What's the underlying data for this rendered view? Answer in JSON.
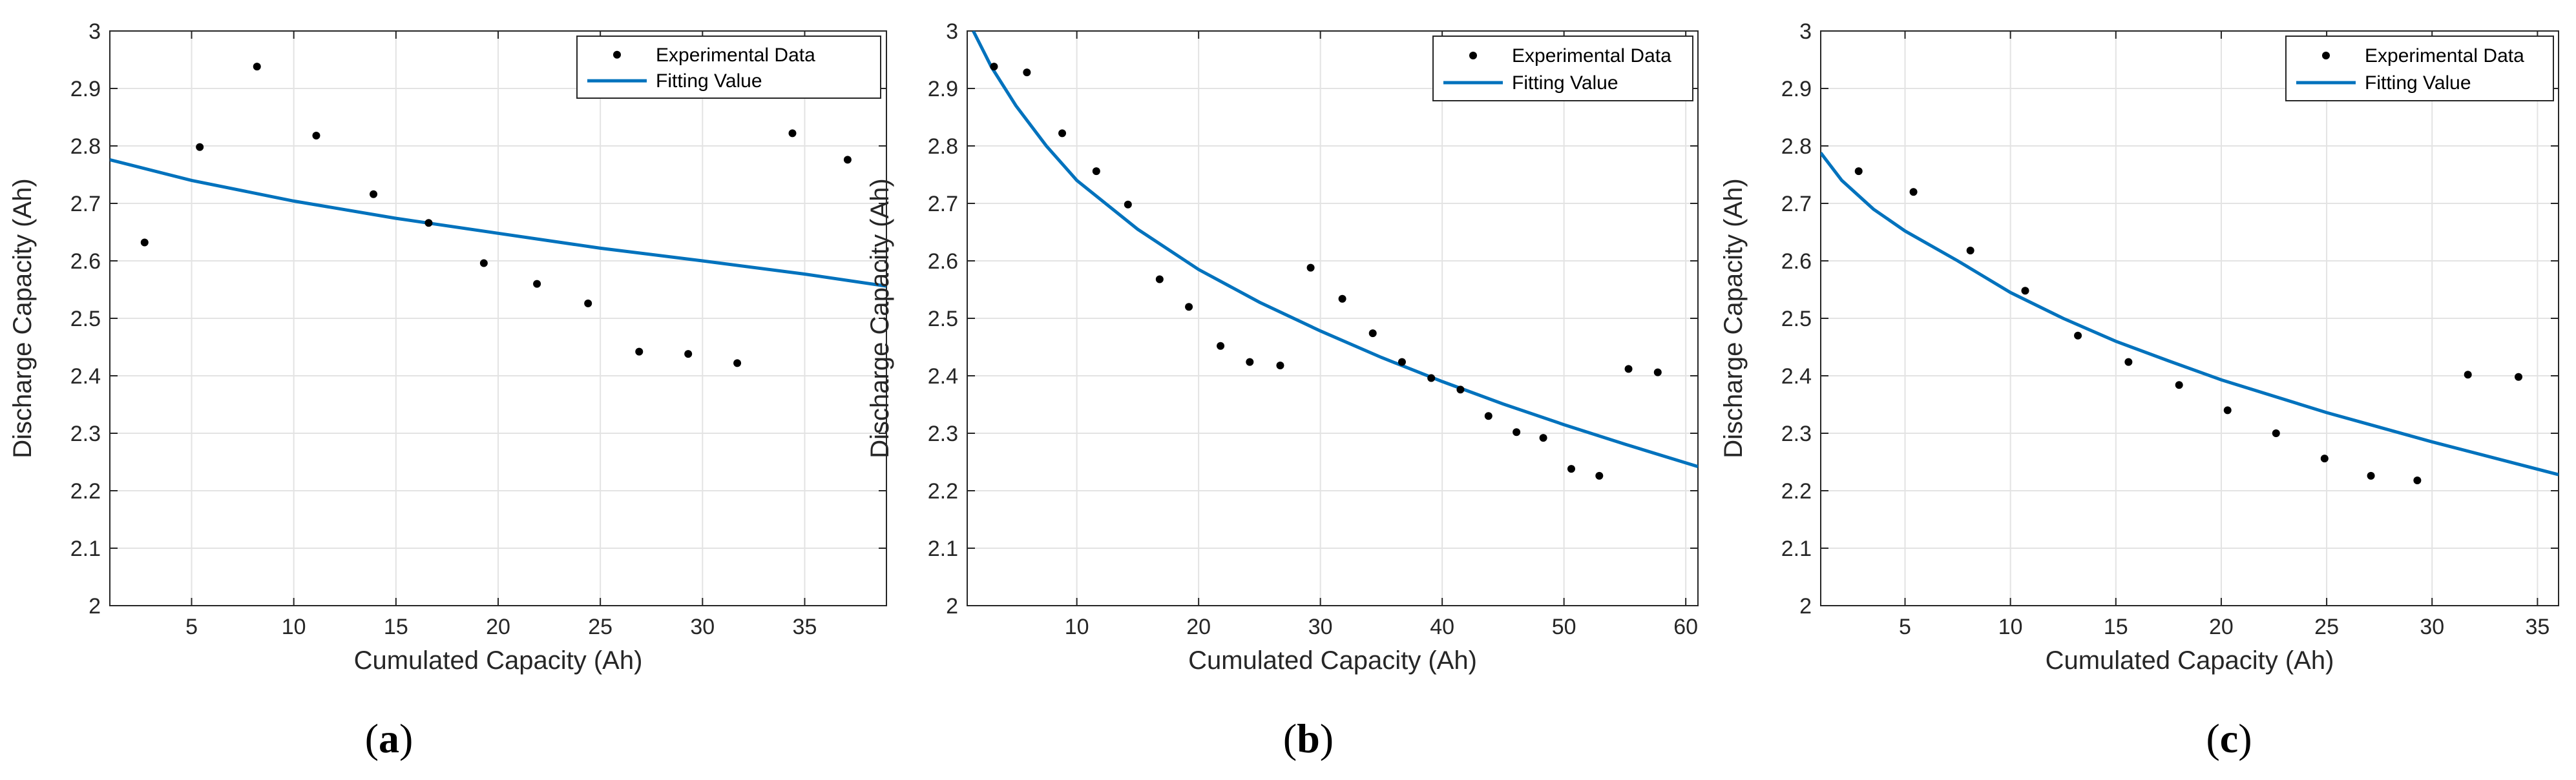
{
  "chart_data": [
    {
      "type": "scatter",
      "panel_label": "a",
      "xlabel": "Cumulated Capacity (Ah)",
      "ylabel": "Discharge Capacity (Ah)",
      "xlim": [
        1,
        39
      ],
      "ylim": [
        2,
        3
      ],
      "xticks": [
        5,
        10,
        15,
        20,
        25,
        30,
        35
      ],
      "yticks": [
        2,
        2.1,
        2.2,
        2.3,
        2.4,
        2.5,
        2.6,
        2.7,
        2.8,
        2.9,
        3
      ],
      "grid": true,
      "legend_position": "top-right",
      "series": [
        {
          "name": "Experimental Data",
          "kind": "points",
          "x": [
            2.7,
            5.4,
            8.2,
            11.1,
            13.9,
            16.6,
            19.3,
            21.9,
            24.4,
            26.9,
            29.3,
            31.7,
            34.4,
            37.1
          ],
          "y": [
            2.632,
            2.798,
            2.938,
            2.818,
            2.716,
            2.666,
            2.596,
            2.56,
            2.526,
            2.442,
            2.438,
            2.422,
            2.822,
            2.776
          ]
        },
        {
          "name": "Fitting Value",
          "kind": "line",
          "x": [
            1,
            5,
            10,
            15,
            20,
            25,
            30,
            35,
            39
          ],
          "y": [
            2.776,
            2.74,
            2.704,
            2.674,
            2.648,
            2.622,
            2.6,
            2.577,
            2.556
          ]
        }
      ]
    },
    {
      "type": "scatter",
      "panel_label": "b",
      "xlabel": "Cumulated Capacity (Ah)",
      "ylabel": "Discharge Capacity (Ah)",
      "xlim": [
        1,
        61
      ],
      "ylim": [
        2,
        3
      ],
      "xticks": [
        10,
        20,
        30,
        40,
        50,
        60
      ],
      "yticks": [
        2,
        2.1,
        2.2,
        2.3,
        2.4,
        2.5,
        2.6,
        2.7,
        2.8,
        2.9,
        3
      ],
      "grid": true,
      "legend_position": "top-right",
      "series": [
        {
          "name": "Experimental Data",
          "kind": "points",
          "x": [
            3.2,
            5.9,
            8.8,
            11.6,
            14.2,
            16.8,
            19.2,
            21.8,
            24.2,
            26.7,
            29.2,
            31.8,
            34.3,
            36.7,
            39.1,
            41.5,
            43.8,
            46.1,
            48.3,
            50.6,
            52.9,
            55.3,
            57.7
          ],
          "y": [
            2.938,
            2.928,
            2.822,
            2.756,
            2.698,
            2.568,
            2.52,
            2.452,
            2.424,
            2.418,
            2.588,
            2.534,
            2.474,
            2.424,
            2.396,
            2.376,
            2.33,
            2.302,
            2.292,
            2.238,
            2.226,
            2.412,
            2.406
          ]
        },
        {
          "name": "Fitting Value",
          "kind": "line",
          "x": [
            1.5,
            3,
            5,
            7.5,
            10,
            15,
            20,
            25,
            30,
            35,
            40,
            45,
            50,
            55,
            61
          ],
          "y": [
            3.0,
            2.937,
            2.87,
            2.8,
            2.74,
            2.655,
            2.585,
            2.528,
            2.478,
            2.432,
            2.39,
            2.351,
            2.315,
            2.281,
            2.242
          ]
        }
      ]
    },
    {
      "type": "scatter",
      "panel_label": "c",
      "xlabel": "Cumulated Capacity (Ah)",
      "ylabel": "Discharge Capacity (Ah)",
      "xlim": [
        1,
        36
      ],
      "ylim": [
        2,
        3
      ],
      "xticks": [
        5,
        10,
        15,
        20,
        25,
        30,
        35
      ],
      "yticks": [
        2,
        2.1,
        2.2,
        2.3,
        2.4,
        2.5,
        2.6,
        2.7,
        2.8,
        2.9,
        3
      ],
      "grid": true,
      "legend_position": "top-right",
      "series": [
        {
          "name": "Experimental Data",
          "kind": "points",
          "x": [
            2.8,
            5.4,
            8.1,
            10.7,
            13.2,
            15.6,
            18.0,
            20.3,
            22.6,
            24.9,
            27.1,
            29.3,
            31.7,
            34.1
          ],
          "y": [
            2.756,
            2.72,
            2.618,
            2.548,
            2.47,
            2.424,
            2.384,
            2.34,
            2.3,
            2.256,
            2.226,
            2.218,
            2.402,
            2.398
          ]
        },
        {
          "name": "Fitting Value",
          "kind": "line",
          "x": [
            1,
            2,
            3.5,
            5,
            7.5,
            10,
            12.5,
            15,
            17.5,
            20,
            25,
            30,
            36
          ],
          "y": [
            2.788,
            2.74,
            2.69,
            2.652,
            2.6,
            2.545,
            2.5,
            2.46,
            2.426,
            2.393,
            2.336,
            2.285,
            2.228
          ]
        }
      ]
    }
  ],
  "colors": {
    "fit_line": "#0072BD",
    "points": "#000000",
    "grid": "#e3e3e3",
    "axes": "#262626"
  }
}
